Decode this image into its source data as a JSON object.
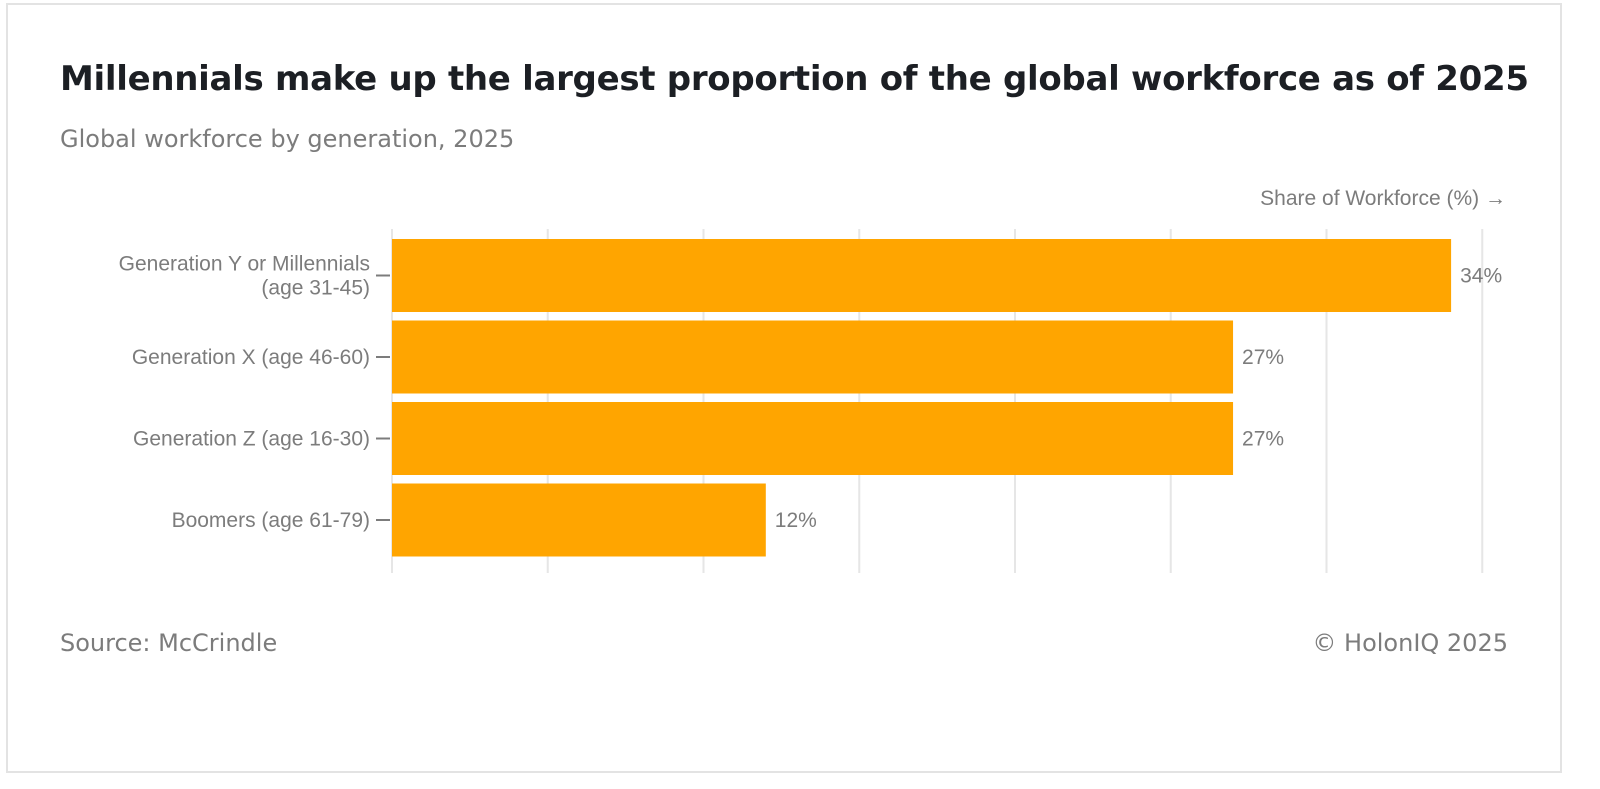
{
  "header": {
    "title": "Millennials make up the largest proportion of the global workforce as of 2025",
    "subtitle": "Global workforce by generation, 2025"
  },
  "footer": {
    "source": "Source: McCrindle",
    "copyright": "© HolonIQ 2025"
  },
  "chart_data": {
    "type": "bar",
    "orientation": "horizontal",
    "title": "Millennials make up the largest proportion of the global workforce as of 2025",
    "subtitle": "Global workforce by generation, 2025",
    "xlabel": "Share of Workforce (%) →",
    "ylabel": "",
    "categories": [
      [
        "Generation Y or Millennials",
        "(age 31-45)"
      ],
      [
        "Generation X (age 46-60)"
      ],
      [
        "Generation Z (age 16-30)"
      ],
      [
        "Boomers (age 61-79)"
      ]
    ],
    "values": [
      34,
      27,
      27,
      12
    ],
    "data_labels": [
      "34%",
      "27%",
      "27%",
      "12%"
    ],
    "xlim": [
      0,
      35
    ],
    "gridline_step": 5,
    "grid": true,
    "legend": false,
    "bar_color": "#FFA500",
    "grid_color": "#e6e6e6",
    "text_color": "#7c7c7c"
  }
}
